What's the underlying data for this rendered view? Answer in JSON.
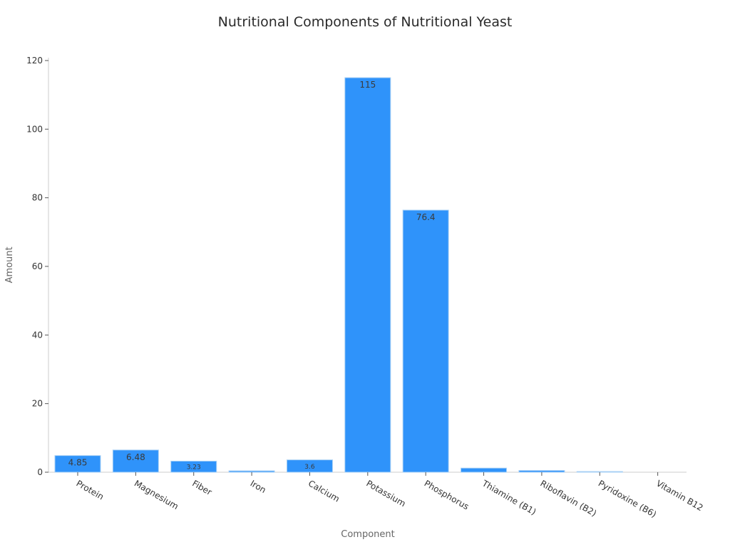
{
  "chart_data": {
    "type": "bar",
    "title": "Nutritional Components of Nutritional Yeast",
    "xlabel": "Component",
    "ylabel": "Amount",
    "categories": [
      "Protein",
      "Magnesium",
      "Fiber",
      "Iron",
      "Calcium",
      "Potassium",
      "Phosphorus",
      "Thiamine (B1)",
      "Riboflavin (B2)",
      "Pyridoxine (B6)",
      "Vitamin B12"
    ],
    "values": [
      4.85,
      6.48,
      3.23,
      0.4,
      3.6,
      115,
      76.4,
      1.2,
      0.5,
      0.2,
      0.0
    ],
    "data_labels": [
      "4.85",
      "6.48",
      "3.23",
      "",
      "3.6",
      "115",
      "76.4",
      "",
      "",
      "",
      ""
    ],
    "ylim": [
      0,
      120
    ],
    "yticks": [
      0,
      20,
      40,
      60,
      80,
      100,
      120
    ],
    "grid": false,
    "legend": null,
    "bar_color": "#2f93fa",
    "bar_edge_color": "#a8d0f5"
  }
}
